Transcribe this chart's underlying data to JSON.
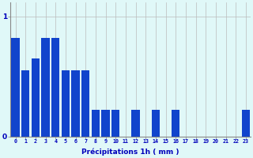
{
  "categories": [
    0,
    1,
    2,
    3,
    4,
    5,
    6,
    7,
    8,
    9,
    10,
    11,
    12,
    13,
    14,
    15,
    16,
    17,
    18,
    19,
    20,
    21,
    22,
    23
  ],
  "values": [
    0.82,
    0.55,
    0.65,
    0.82,
    0.82,
    0.55,
    0.55,
    0.55,
    0.22,
    0.22,
    0.22,
    0.0,
    0.22,
    0.0,
    0.22,
    0.0,
    0.22,
    0.0,
    0.0,
    0.0,
    0.0,
    0.0,
    0.0,
    0.22
  ],
  "bar_color": "#1144cc",
  "background_color": "#e0f8f8",
  "grid_color": "#bbbbbb",
  "xlabel": "Précipitations 1h ( mm )",
  "xlabel_color": "#0000bb",
  "tick_color": "#0000bb",
  "ytick_labels": [
    "0",
    "1"
  ],
  "ytick_values": [
    0,
    1
  ],
  "ylim": [
    0,
    1.12
  ],
  "xlim": [
    -0.5,
    23.5
  ]
}
